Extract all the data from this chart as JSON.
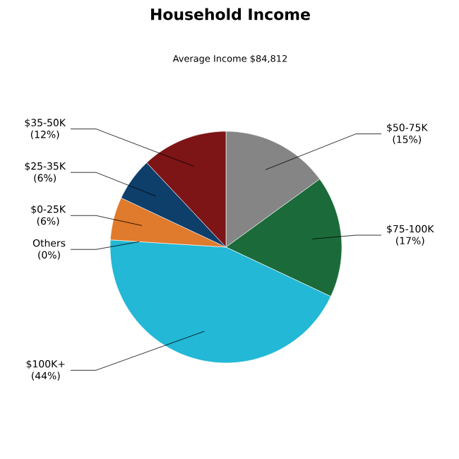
{
  "chart_data": {
    "type": "pie",
    "title": "Household Income",
    "subtitle": "Average Income  $84,812",
    "categories": [
      "$50-75K",
      "$75-100K",
      "$100K+",
      "Others",
      "$0-25K",
      "$25-35K",
      "$35-50K"
    ],
    "values": [
      15,
      17,
      44,
      0,
      6,
      6,
      12
    ],
    "value_labels": [
      "(15%)",
      "(17%)",
      "(44%)",
      "(0%)",
      "(6%)",
      "(6%)",
      "(12%)"
    ],
    "colors": [
      "#858585",
      "#1b6b3a",
      "#22b8d6",
      "#9aa0a6",
      "#e07a2c",
      "#0e3f6b",
      "#7d1416"
    ]
  }
}
